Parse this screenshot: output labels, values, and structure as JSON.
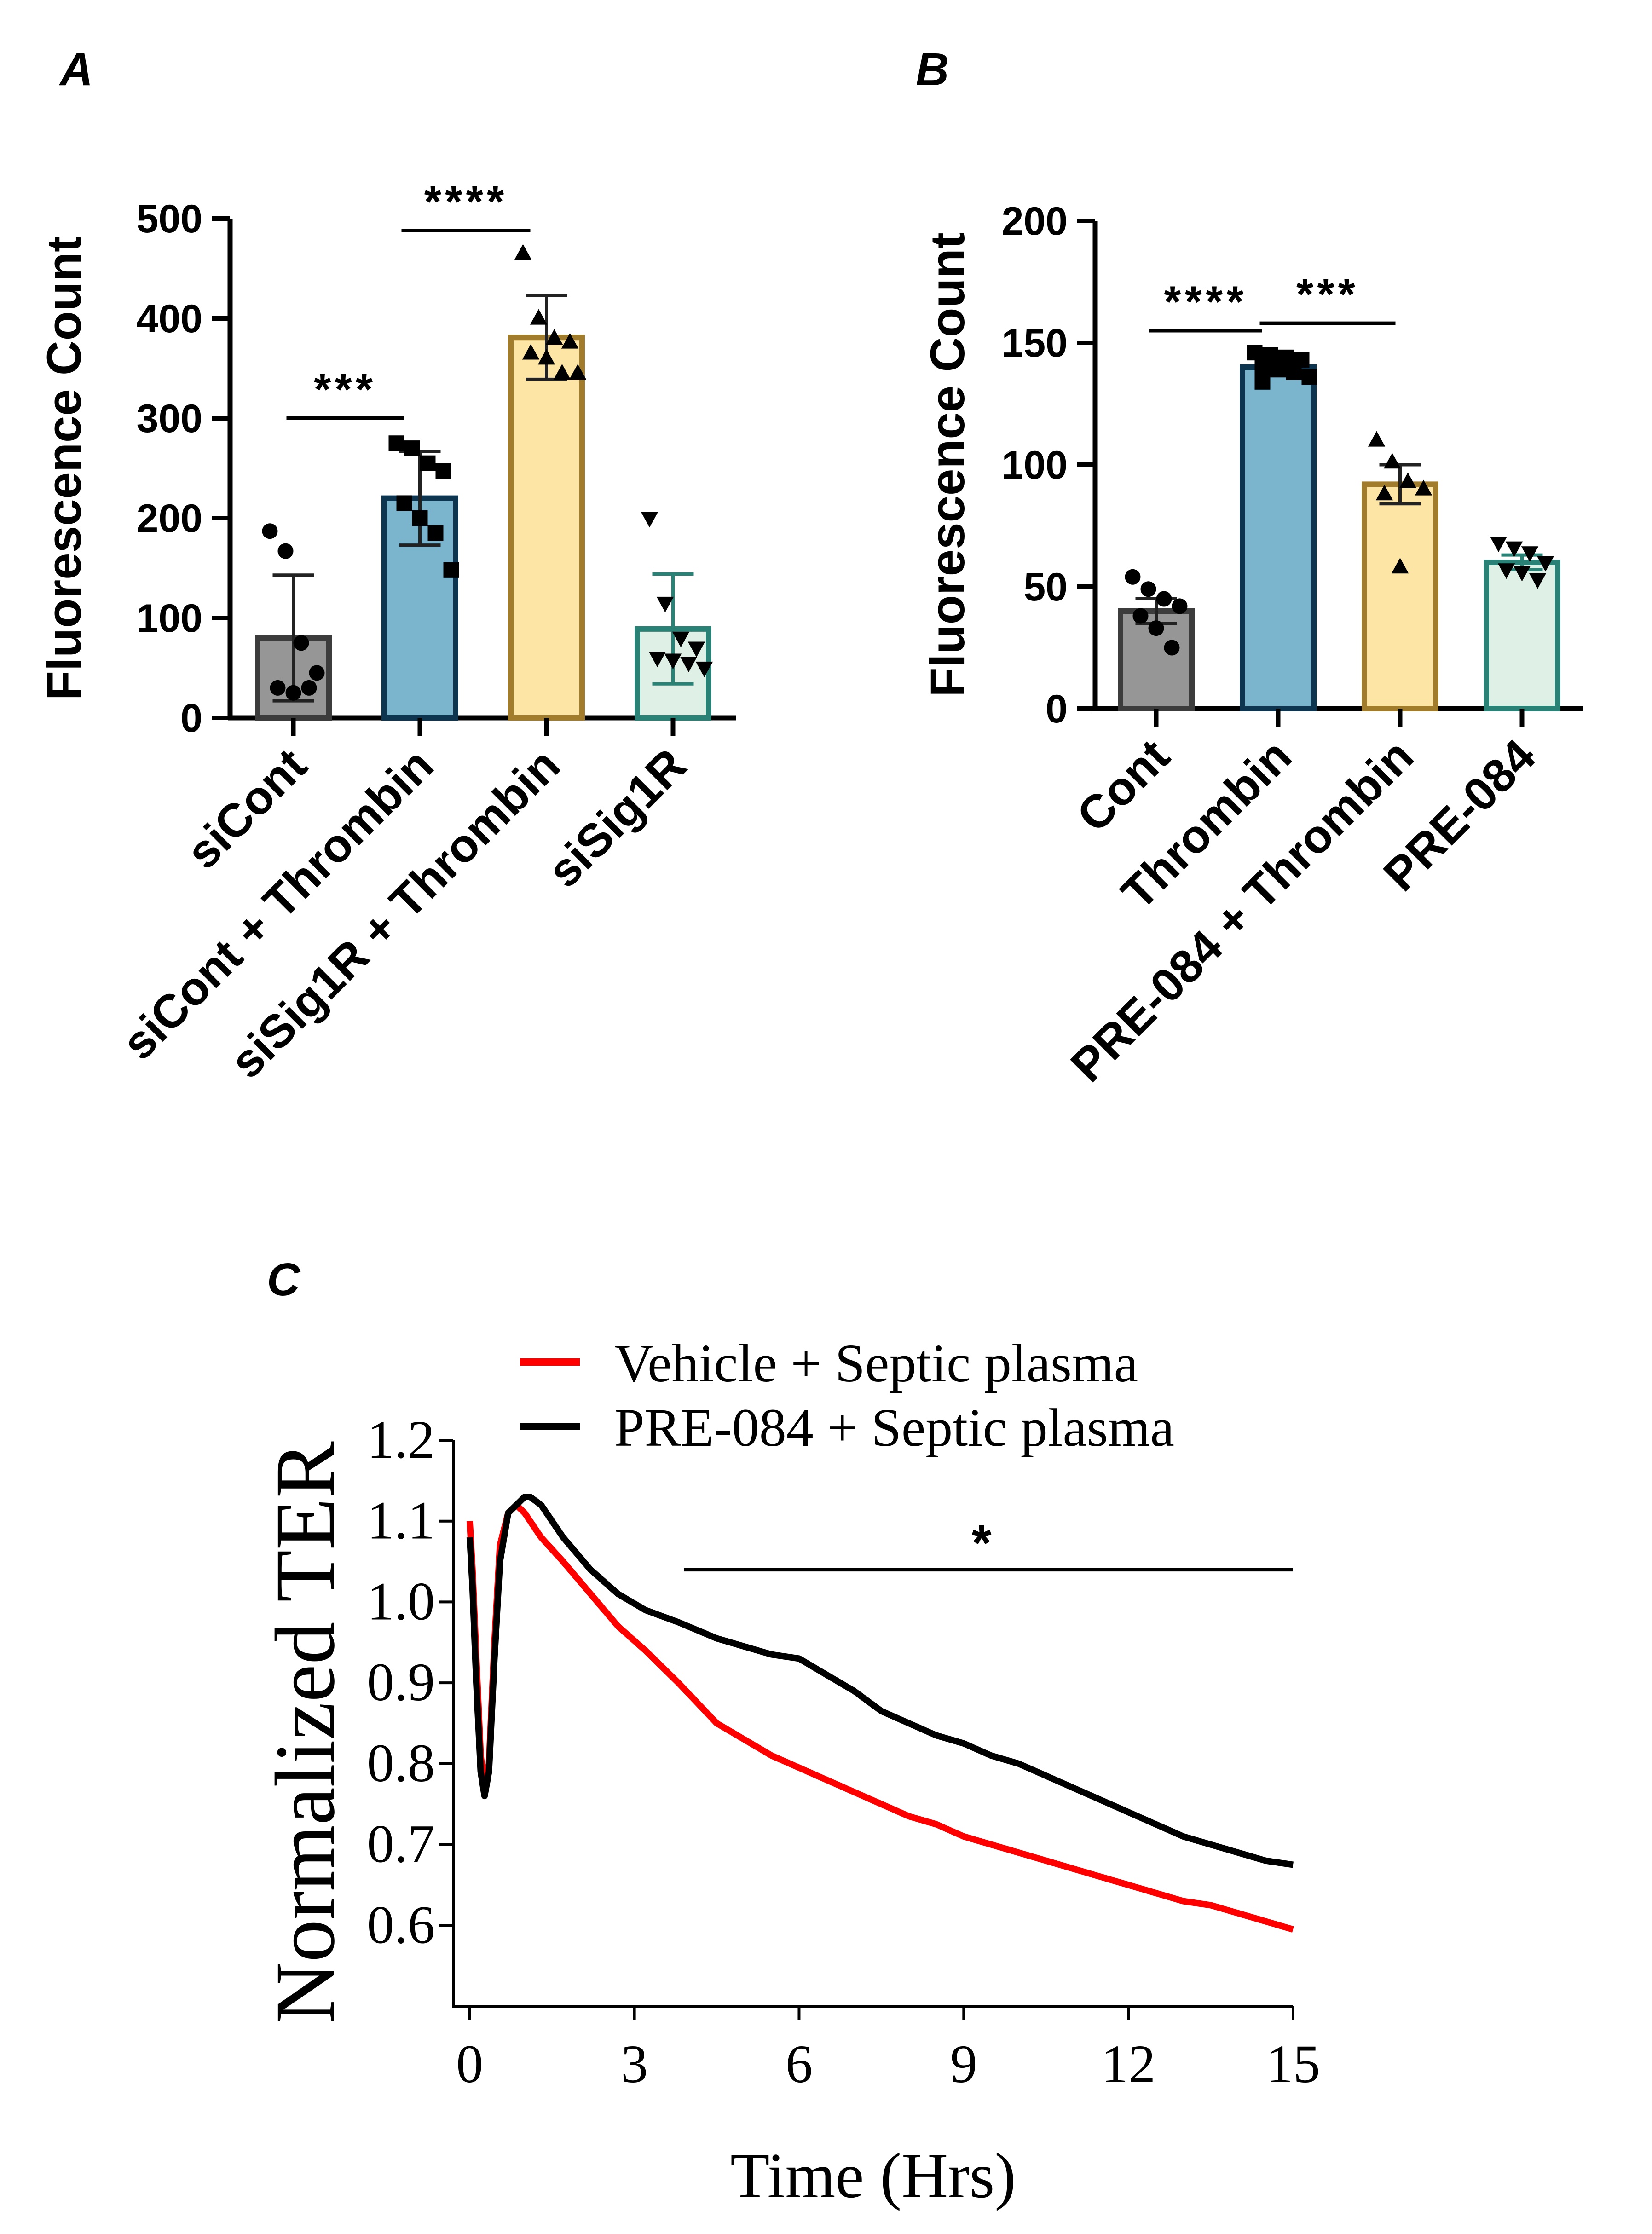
{
  "chart_data": [
    {
      "panel": "A",
      "type": "bar",
      "ylabel": "Fluorescence Count",
      "ylim": [
        0,
        500
      ],
      "yticks": [
        "0",
        "100",
        "200",
        "300",
        "400",
        "500"
      ],
      "categories": [
        "siCont",
        "siCont + Thrombin",
        "siSig1R + Thrombin",
        "siSig1R"
      ],
      "means": [
        80,
        220,
        381,
        89
      ],
      "sd": [
        63,
        47,
        42,
        55
      ],
      "colors": [
        "#969696",
        "#7bb4cd",
        "#fde5a6",
        "#dff1e7"
      ],
      "edge_colors": [
        "#3c3c3c",
        "#0e3550",
        "#a07c2c",
        "#2a8276"
      ],
      "points": [
        [
          187,
          167,
          75,
          45,
          30,
          25,
          30
        ],
        [
          275,
          270,
          255,
          247,
          215,
          200,
          185,
          148
        ],
        [
          465,
          400,
          380,
          376,
          365,
          360,
          345,
          345
        ],
        [
          200,
          115,
          80,
          70,
          60,
          58,
          55,
          50
        ]
      ],
      "point_markers": [
        "circle",
        "square",
        "triangle-up",
        "triangle-down"
      ],
      "significance": [
        {
          "from": 0,
          "to": 1,
          "label": "***",
          "y": 300
        },
        {
          "from": 1,
          "to": 2,
          "label": "****",
          "y": 488
        }
      ]
    },
    {
      "panel": "B",
      "type": "bar",
      "ylabel": "Fluorescence Count",
      "ylim": [
        0,
        200
      ],
      "yticks": [
        "0",
        "50",
        "100",
        "150",
        "200"
      ],
      "categories": [
        "Cont",
        "Thrombin",
        "PRE-084 + Thrombin",
        "PRE-084"
      ],
      "means": [
        40,
        140,
        92,
        60
      ],
      "sem": [
        5,
        3,
        8,
        3
      ],
      "colors": [
        "#969696",
        "#7bb4cd",
        "#fde5a6",
        "#dff1e7"
      ],
      "edge_colors": [
        "#3c3c3c",
        "#0e3550",
        "#a07c2c",
        "#2a8276"
      ],
      "points": [
        [
          54,
          49,
          45,
          42,
          38,
          33,
          25
        ],
        [
          146,
          145,
          144,
          143,
          140,
          139,
          138,
          136,
          134
        ],
        [
          110,
          101,
          93,
          90,
          88,
          58
        ],
        [
          68,
          66,
          64,
          60,
          57,
          56,
          53
        ]
      ],
      "point_markers": [
        "circle",
        "square",
        "triangle-up",
        "triangle-down"
      ],
      "significance": [
        {
          "from": 0,
          "to": 1,
          "label": "****",
          "y": 155
        },
        {
          "from": 1,
          "to": 2,
          "label": "***",
          "y": 158
        }
      ]
    },
    {
      "panel": "C",
      "type": "line",
      "xlabel": "Time (Hrs)",
      "ylabel": "Normalized TER",
      "xlim": [
        -0.3,
        15
      ],
      "ylim": [
        0.5,
        1.2
      ],
      "xticks": [
        "0",
        "3",
        "6",
        "9",
        "12",
        "15"
      ],
      "yticks": [
        "0.6",
        "0.7",
        "0.8",
        "0.9",
        "1.0",
        "1.1",
        "1.2"
      ],
      "series": [
        {
          "name": "Vehicle + Septic plasma",
          "color": "#ff0000",
          "x": [
            0,
            0.05,
            0.12,
            0.2,
            0.27,
            0.35,
            0.45,
            0.55,
            0.7,
            0.85,
            1.0,
            1.3,
            1.7,
            2.2,
            2.7,
            3.2,
            3.8,
            4.5,
            5.0,
            5.5,
            6.0,
            6.5,
            7.0,
            7.5,
            8.0,
            8.5,
            9.0,
            9.5,
            10.0,
            10.5,
            11.0,
            11.5,
            12.0,
            12.5,
            13.0,
            13.5,
            14.0,
            14.5,
            15.0
          ],
          "y": [
            1.1,
            1.04,
            0.93,
            0.81,
            0.77,
            0.8,
            0.95,
            1.07,
            1.11,
            1.12,
            1.11,
            1.08,
            1.05,
            1.01,
            0.97,
            0.94,
            0.9,
            0.85,
            0.83,
            0.81,
            0.795,
            0.78,
            0.765,
            0.75,
            0.735,
            0.725,
            0.71,
            0.7,
            0.69,
            0.68,
            0.67,
            0.66,
            0.65,
            0.64,
            0.63,
            0.625,
            0.615,
            0.605,
            0.595
          ]
        },
        {
          "name": "PRE-084 + Septic plasma",
          "color": "#000000",
          "x": [
            0,
            0.05,
            0.12,
            0.2,
            0.27,
            0.35,
            0.45,
            0.55,
            0.7,
            0.85,
            1.0,
            1.1,
            1.3,
            1.7,
            2.2,
            2.7,
            3.2,
            3.8,
            4.5,
            5.0,
            5.5,
            6.0,
            6.5,
            7.0,
            7.5,
            8.0,
            8.5,
            9.0,
            9.5,
            10.0,
            10.5,
            11.0,
            11.5,
            12.0,
            12.5,
            13.0,
            13.5,
            14.0,
            14.5,
            15.0
          ],
          "y": [
            1.08,
            1.02,
            0.9,
            0.79,
            0.76,
            0.79,
            0.93,
            1.05,
            1.11,
            1.12,
            1.13,
            1.13,
            1.12,
            1.08,
            1.04,
            1.01,
            0.99,
            0.975,
            0.955,
            0.945,
            0.935,
            0.93,
            0.91,
            0.89,
            0.865,
            0.85,
            0.835,
            0.825,
            0.81,
            0.8,
            0.785,
            0.77,
            0.755,
            0.74,
            0.725,
            0.71,
            0.7,
            0.69,
            0.68,
            0.675
          ]
        }
      ],
      "significance": {
        "label": "*",
        "x_from": 3.9,
        "x_to": 15,
        "y": 1.04
      }
    }
  ],
  "panels": {
    "a": {
      "letter": "A"
    },
    "b": {
      "letter": "B"
    },
    "c": {
      "letter": "C"
    }
  }
}
